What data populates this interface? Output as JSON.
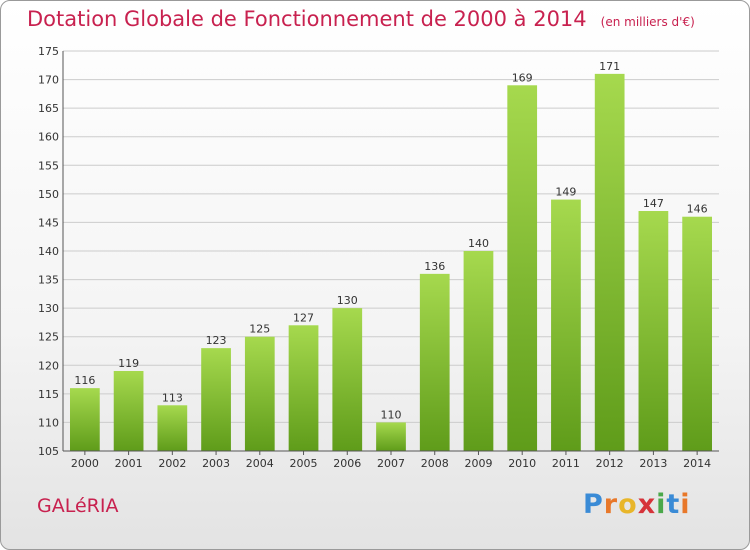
{
  "title": "Dotation Globale de Fonctionnement de 2000 à 2014",
  "unit": "(en milliers d'€)",
  "commune": "GALéRIA",
  "logo": {
    "letters": [
      "P",
      "r",
      "o",
      "x",
      "i",
      "t",
      "i"
    ],
    "colors": [
      "#3a8bd6",
      "#e8782a",
      "#e8b62a",
      "#d6333a",
      "#4aa84a",
      "#3a8bd6",
      "#e8782a"
    ]
  },
  "colors": {
    "bar": "#7fbf2e",
    "bar_light": "#a6d94e",
    "bar_dark": "#5f9c1a",
    "title": "#c8214f",
    "grid": "#cccccc"
  },
  "chart_data": {
    "type": "bar",
    "categories": [
      "2000",
      "2001",
      "2002",
      "2003",
      "2004",
      "2005",
      "2006",
      "2007",
      "2008",
      "2009",
      "2010",
      "2011",
      "2012",
      "2013",
      "2014"
    ],
    "values": [
      116,
      119,
      113,
      123,
      125,
      127,
      130,
      110,
      136,
      140,
      169,
      149,
      171,
      147,
      146
    ],
    "title": "Dotation Globale de Fonctionnement de 2000 à 2014",
    "ylim": [
      105,
      175
    ],
    "yticks": [
      105,
      110,
      115,
      120,
      125,
      130,
      135,
      140,
      145,
      150,
      155,
      160,
      165,
      170,
      175
    ],
    "grid": true
  }
}
